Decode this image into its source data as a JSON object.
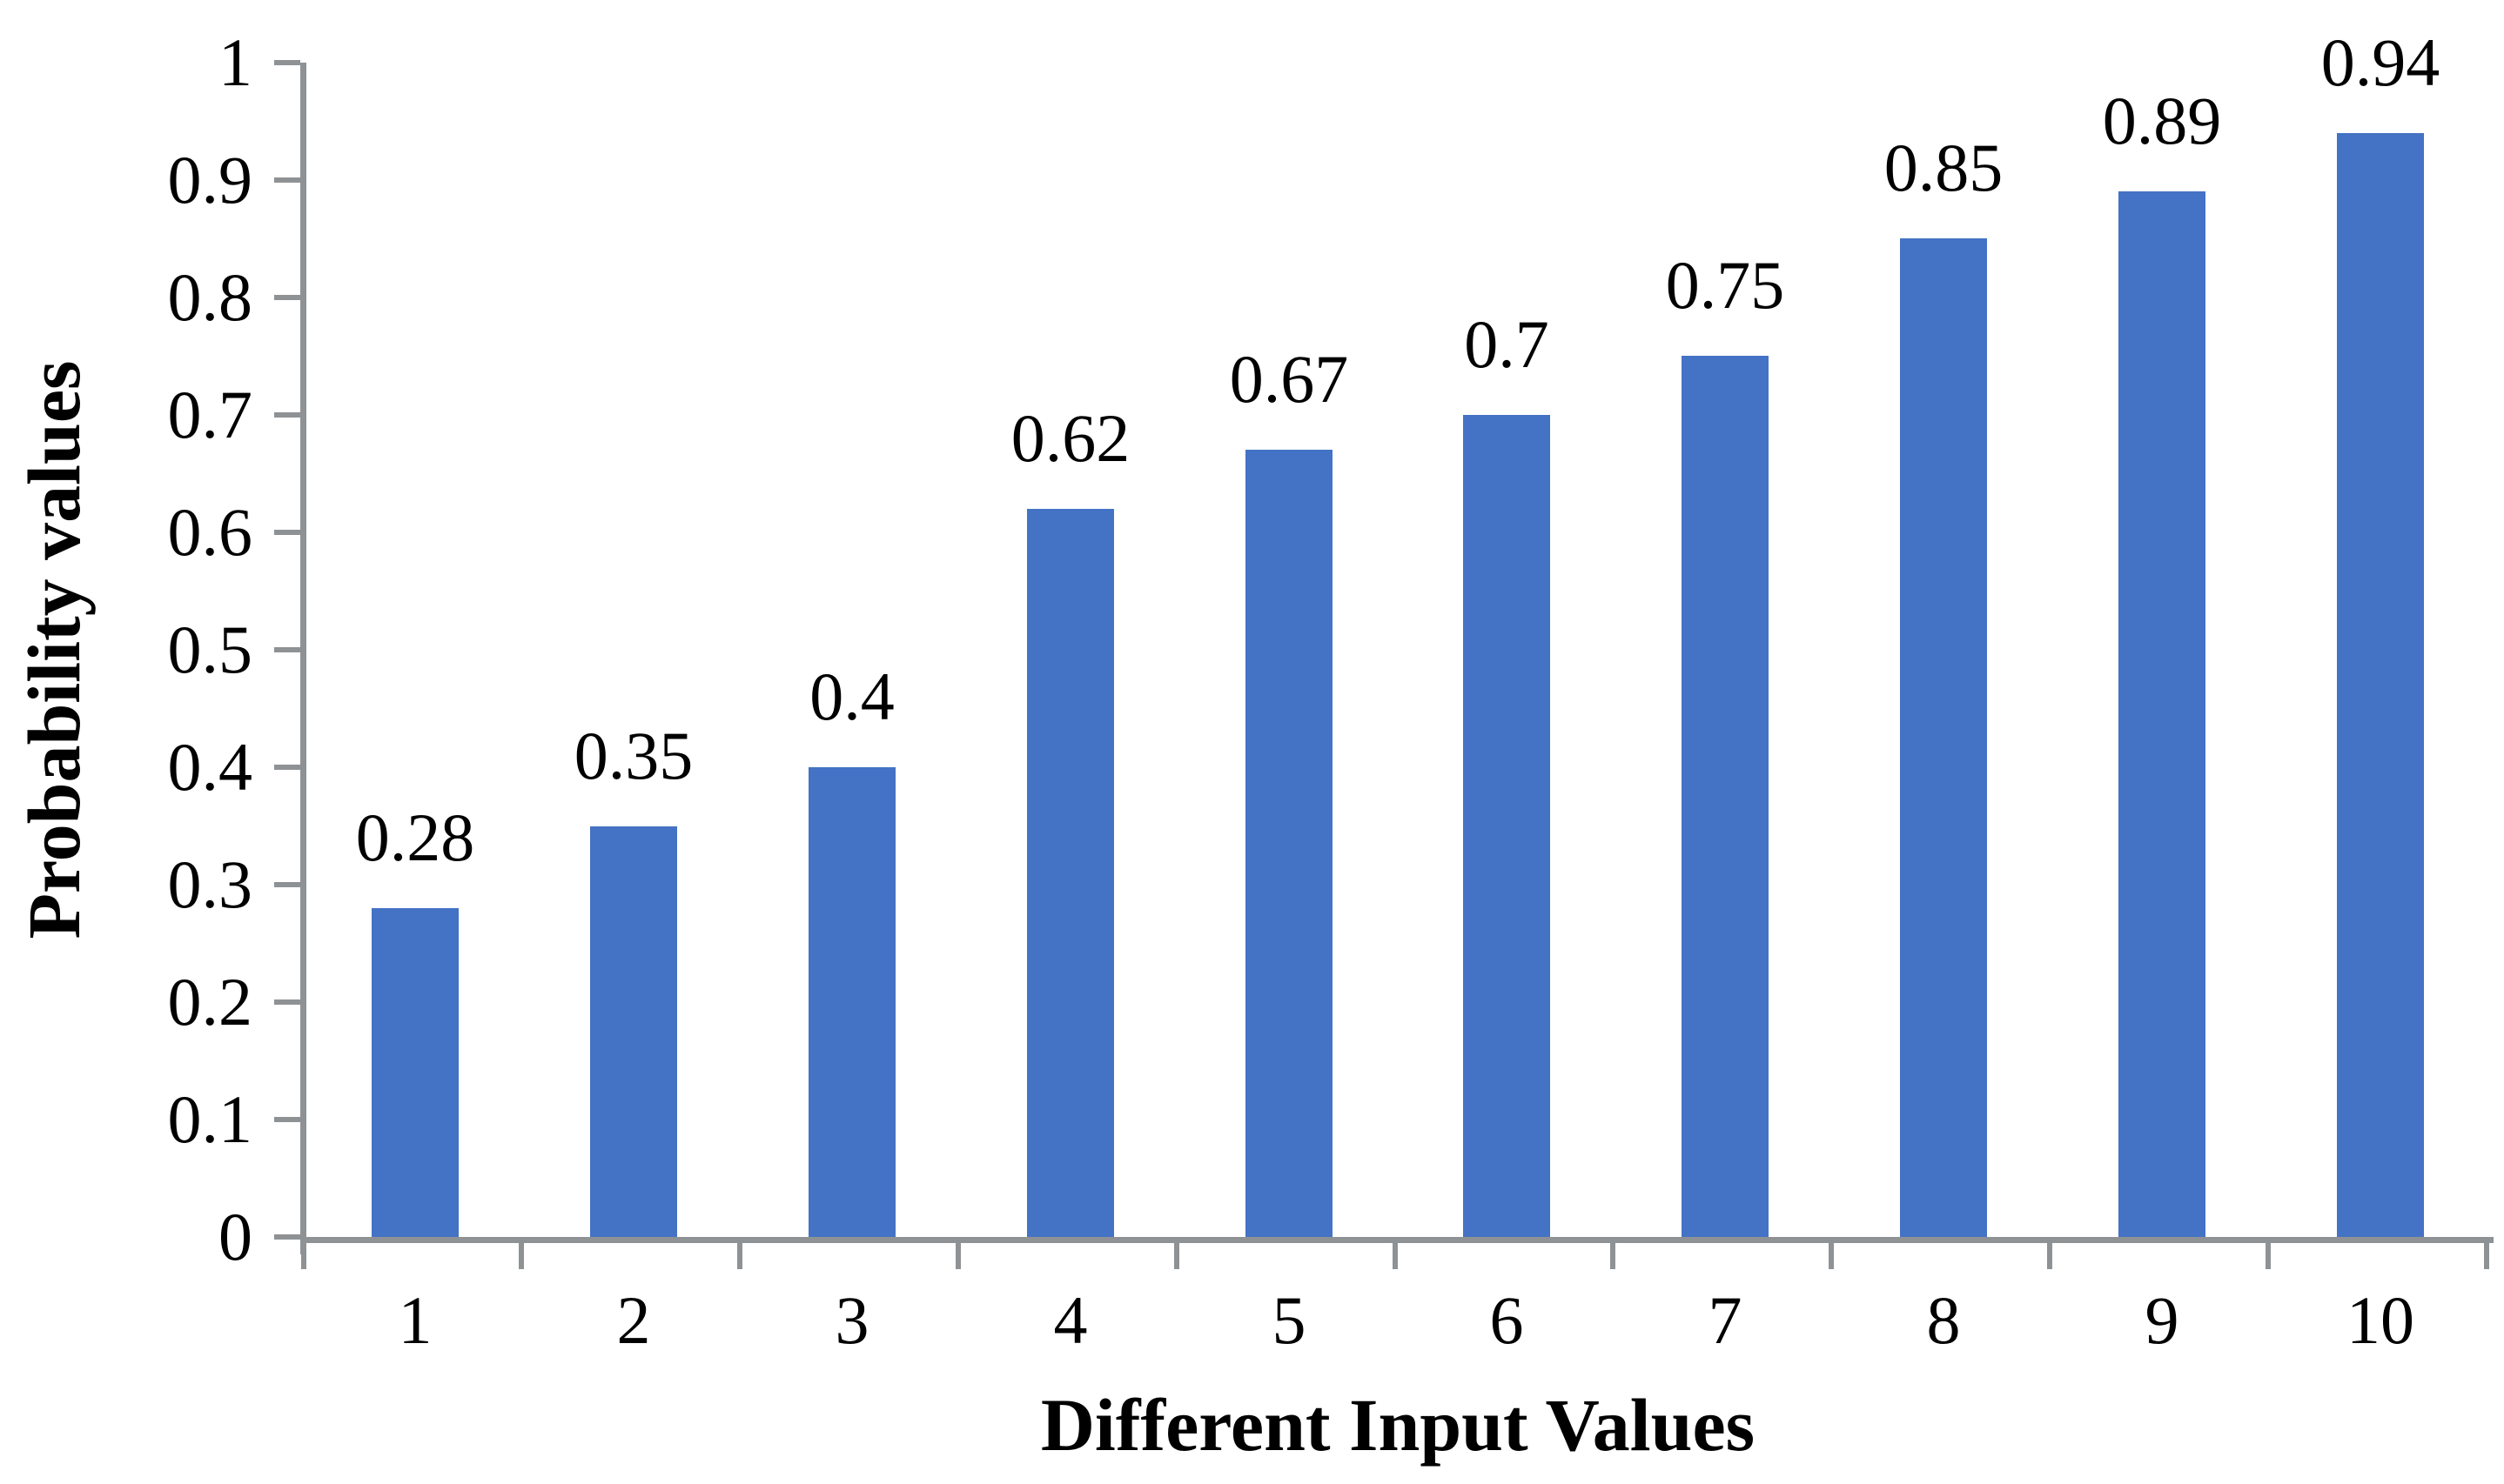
{
  "figure": {
    "background": "#FFFFFF"
  },
  "chart_data": {
    "type": "bar",
    "title": "",
    "xlabel": "Different Input Values",
    "ylabel": "Probability values",
    "categories": [
      "1",
      "2",
      "3",
      "4",
      "5",
      "6",
      "7",
      "8",
      "9",
      "10"
    ],
    "values": [
      0.28,
      0.35,
      0.4,
      0.62,
      0.67,
      0.7,
      0.75,
      0.85,
      0.89,
      0.94
    ],
    "value_labels": [
      "0.28",
      "0.35",
      "0.4",
      "0.62",
      "0.67",
      "0.7",
      "0.75",
      "0.85",
      "0.89",
      "0.94"
    ],
    "ylim": [
      0,
      1
    ],
    "ytick_values": [
      0,
      0.1,
      0.2,
      0.3,
      0.4,
      0.5,
      0.6,
      0.7,
      0.8,
      0.9,
      1
    ],
    "ytick_labels": [
      "0",
      "0.1",
      "0.2",
      "0.3",
      "0.4",
      "0.5",
      "0.6",
      "0.7",
      "0.8",
      "0.9",
      "1"
    ],
    "grid": false,
    "legend": "none",
    "bar_color": "#4472C4",
    "axis_color": "#8F9295",
    "text_color": "#000000"
  }
}
